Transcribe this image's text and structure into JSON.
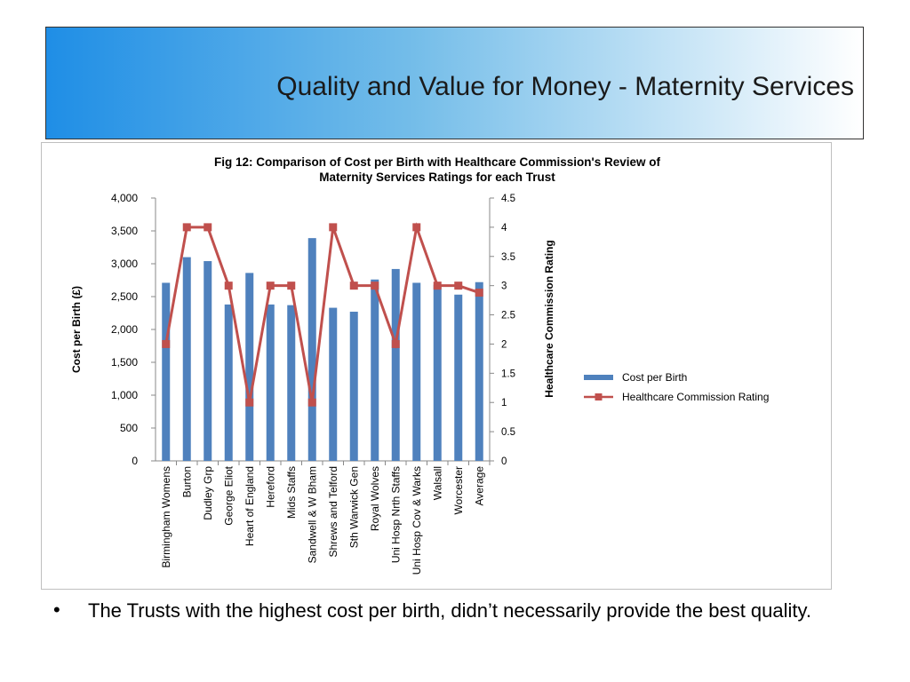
{
  "slide": {
    "title": "Quality and Value for Money - Maternity Services",
    "bullet_marker": "•",
    "bullet_text": "The Trusts with the highest cost per birth, didn’t necessarily provide the best quality."
  },
  "colors": {
    "title_gradient_start": "#1f8ee6",
    "bar": "#4f81bd",
    "line": "#c0504d"
  },
  "chart_data": {
    "type": "bar+line",
    "title": "Fig 12: Comparison of Cost per Birth with Healthcare Commission's Review of Maternity Services Ratings for each Trust",
    "title_lines": [
      "Fig 12: Comparison of Cost per Birth with Healthcare Commission's Review of",
      "Maternity Services Ratings for each Trust"
    ],
    "ylabel": "Cost per Birth (£)",
    "y2label": "Healthcare Commission Rating",
    "ylim": [
      0,
      4000
    ],
    "y2lim": [
      0,
      4.5
    ],
    "y_ticks": [
      "0",
      "500",
      "1,000",
      "1,500",
      "2,000",
      "2,500",
      "3,000",
      "3,500",
      "4,000"
    ],
    "y2_ticks": [
      "0",
      "0.5",
      "1",
      "1.5",
      "2",
      "2.5",
      "3",
      "3.5",
      "4",
      "4.5"
    ],
    "categories": [
      "Birmingham Womens",
      "Burton",
      "Dudley Grp",
      "George Eliot",
      "Heart of England",
      "Hereford",
      "Mids Staffs",
      "Sandwell & W Bham",
      "Shrews and Telford",
      "Sth Warwick Gen",
      "Royal Wolves",
      "Uni Hosp Nrth Staffs",
      "Uni Hosp Cov & Warks",
      "Walsall",
      "Worcester",
      "Average"
    ],
    "series": [
      {
        "name": "Cost per Birth",
        "type": "bar",
        "axis": "left",
        "values": [
          2710,
          3100,
          3040,
          2380,
          2860,
          2380,
          2370,
          3390,
          2330,
          2270,
          2760,
          2920,
          2710,
          2680,
          2530,
          2720
        ]
      },
      {
        "name": "Healthcare Commission Rating",
        "type": "line",
        "axis": "right",
        "values": [
          2,
          4,
          4,
          3,
          1,
          3,
          3,
          1,
          4,
          3,
          3,
          2,
          4,
          3,
          3,
          2.88
        ]
      }
    ],
    "legend": "right",
    "grid": false
  }
}
